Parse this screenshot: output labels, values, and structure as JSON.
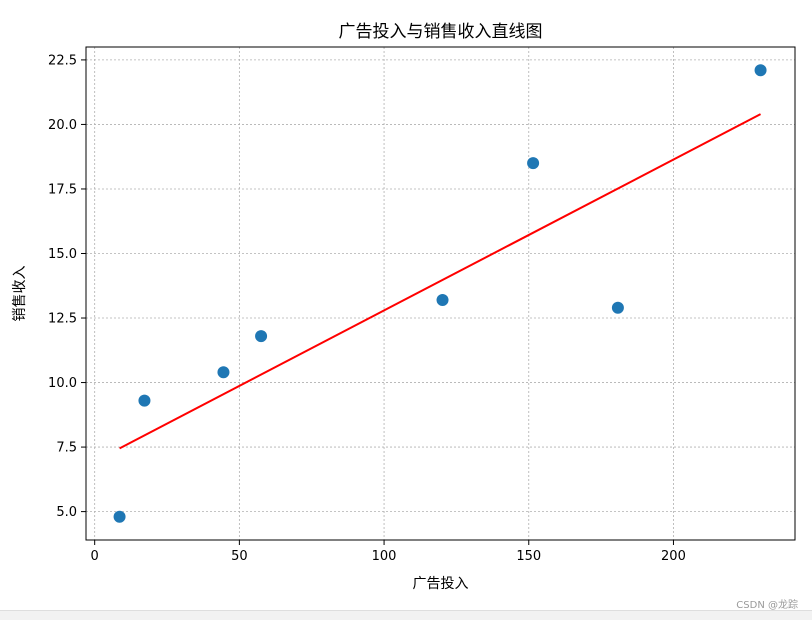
{
  "chart_data": {
    "type": "scatter",
    "title": "广告投入与销售收入直线图",
    "xlabel": "广告投入",
    "ylabel": "销售收入",
    "xlim": [
      -3,
      242
    ],
    "ylim": [
      3.9,
      23.0
    ],
    "xticks": [
      0,
      50,
      100,
      150,
      200
    ],
    "yticks": [
      5.0,
      7.5,
      10.0,
      12.5,
      15.0,
      17.5,
      20.0,
      22.5
    ],
    "xtick_labels": [
      "0",
      "50",
      "100",
      "150",
      "200"
    ],
    "ytick_labels": [
      "5.0",
      "7.5",
      "10.0",
      "12.5",
      "15.0",
      "17.5",
      "20.0",
      "22.5"
    ],
    "grid": true,
    "points": {
      "x": [
        8.6,
        17.2,
        44.5,
        57.5,
        120.2,
        151.5,
        180.8,
        230.1
      ],
      "y": [
        4.8,
        9.3,
        10.4,
        11.8,
        13.2,
        18.5,
        12.9,
        22.1
      ],
      "color": "#1f77b4"
    },
    "fit_line": {
      "x": [
        8.6,
        230.1
      ],
      "y": [
        7.45,
        20.4
      ],
      "color": "#ff0000"
    }
  },
  "watermark": "CSDN @龙踪"
}
